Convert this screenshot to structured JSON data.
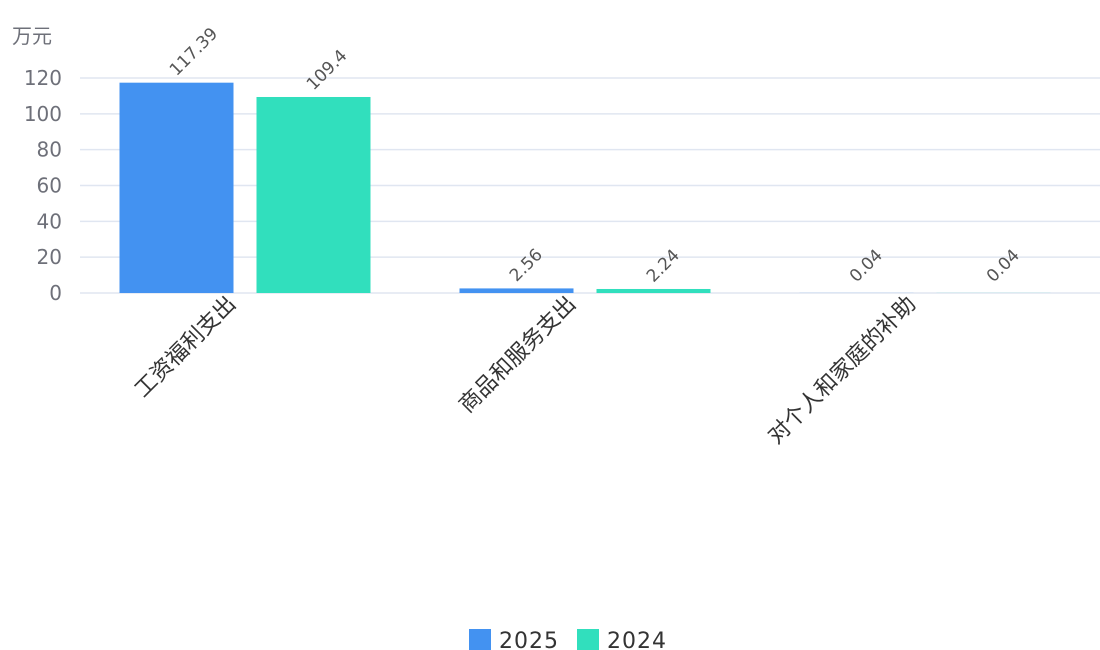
{
  "chart_data": {
    "type": "bar",
    "unit": "万元",
    "categories": [
      "工资福利支出",
      "商品和服务支出",
      "对个人和家庭的补助"
    ],
    "series": [
      {
        "name": "2025",
        "values": [
          117.39,
          2.56,
          0.04
        ],
        "color": "#4392f1"
      },
      {
        "name": "2024",
        "values": [
          109.4,
          2.24,
          0.04
        ],
        "color": "#31dfbd"
      }
    ],
    "ylim": [
      0,
      120
    ],
    "yticks": [
      0,
      20,
      40,
      60,
      80,
      100,
      120
    ],
    "ytick_labels": [
      "0",
      "20",
      "40",
      "60",
      "80",
      "100",
      "120"
    ],
    "data_labels": [
      [
        "117.39",
        "2.56",
        "0.04"
      ],
      [
        "109.4",
        "2.24",
        "0.04"
      ]
    ],
    "grid": true,
    "legend_position": "bottom-center"
  }
}
